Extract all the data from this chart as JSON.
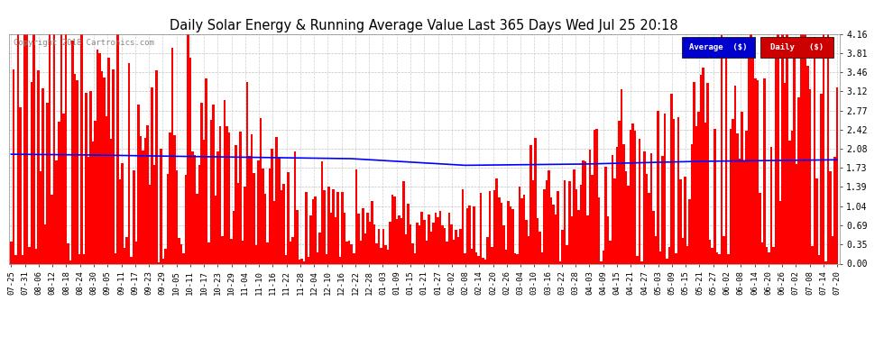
{
  "title": "Daily Solar Energy & Running Average Value Last 365 Days Wed Jul 25 20:18",
  "copyright_text": "Copyright 2018 Cartronics.com",
  "bar_color": "#FF0000",
  "avg_line_color": "#0000FF",
  "background_color": "#FFFFFF",
  "plot_bg_color": "#FFFFFF",
  "grid_color": "#BBBBBB",
  "ylim": [
    0.0,
    4.16
  ],
  "yticks": [
    0.0,
    0.35,
    0.69,
    1.04,
    1.39,
    1.73,
    2.08,
    2.42,
    2.77,
    3.12,
    3.46,
    3.81,
    4.16
  ],
  "legend_avg_color": "#0000CC",
  "legend_daily_color": "#CC0000",
  "legend_avg_text": "Average  ($)",
  "legend_daily_text": "Daily   ($)",
  "x_tick_labels": [
    "07-25",
    "07-31",
    "08-06",
    "08-12",
    "08-18",
    "08-24",
    "08-30",
    "09-05",
    "09-11",
    "09-17",
    "09-23",
    "09-29",
    "10-05",
    "10-11",
    "10-17",
    "10-23",
    "10-29",
    "11-04",
    "11-10",
    "11-16",
    "11-22",
    "11-28",
    "12-04",
    "12-10",
    "12-16",
    "12-22",
    "12-28",
    "01-03",
    "01-09",
    "01-15",
    "01-21",
    "01-27",
    "02-02",
    "02-08",
    "02-14",
    "02-20",
    "02-26",
    "03-04",
    "03-10",
    "03-16",
    "03-22",
    "03-28",
    "04-03",
    "04-09",
    "04-15",
    "04-21",
    "04-27",
    "05-03",
    "05-09",
    "05-15",
    "05-21",
    "05-27",
    "06-02",
    "06-08",
    "06-14",
    "06-20",
    "06-26",
    "07-02",
    "07-08",
    "07-14",
    "07-20"
  ],
  "num_days": 365
}
